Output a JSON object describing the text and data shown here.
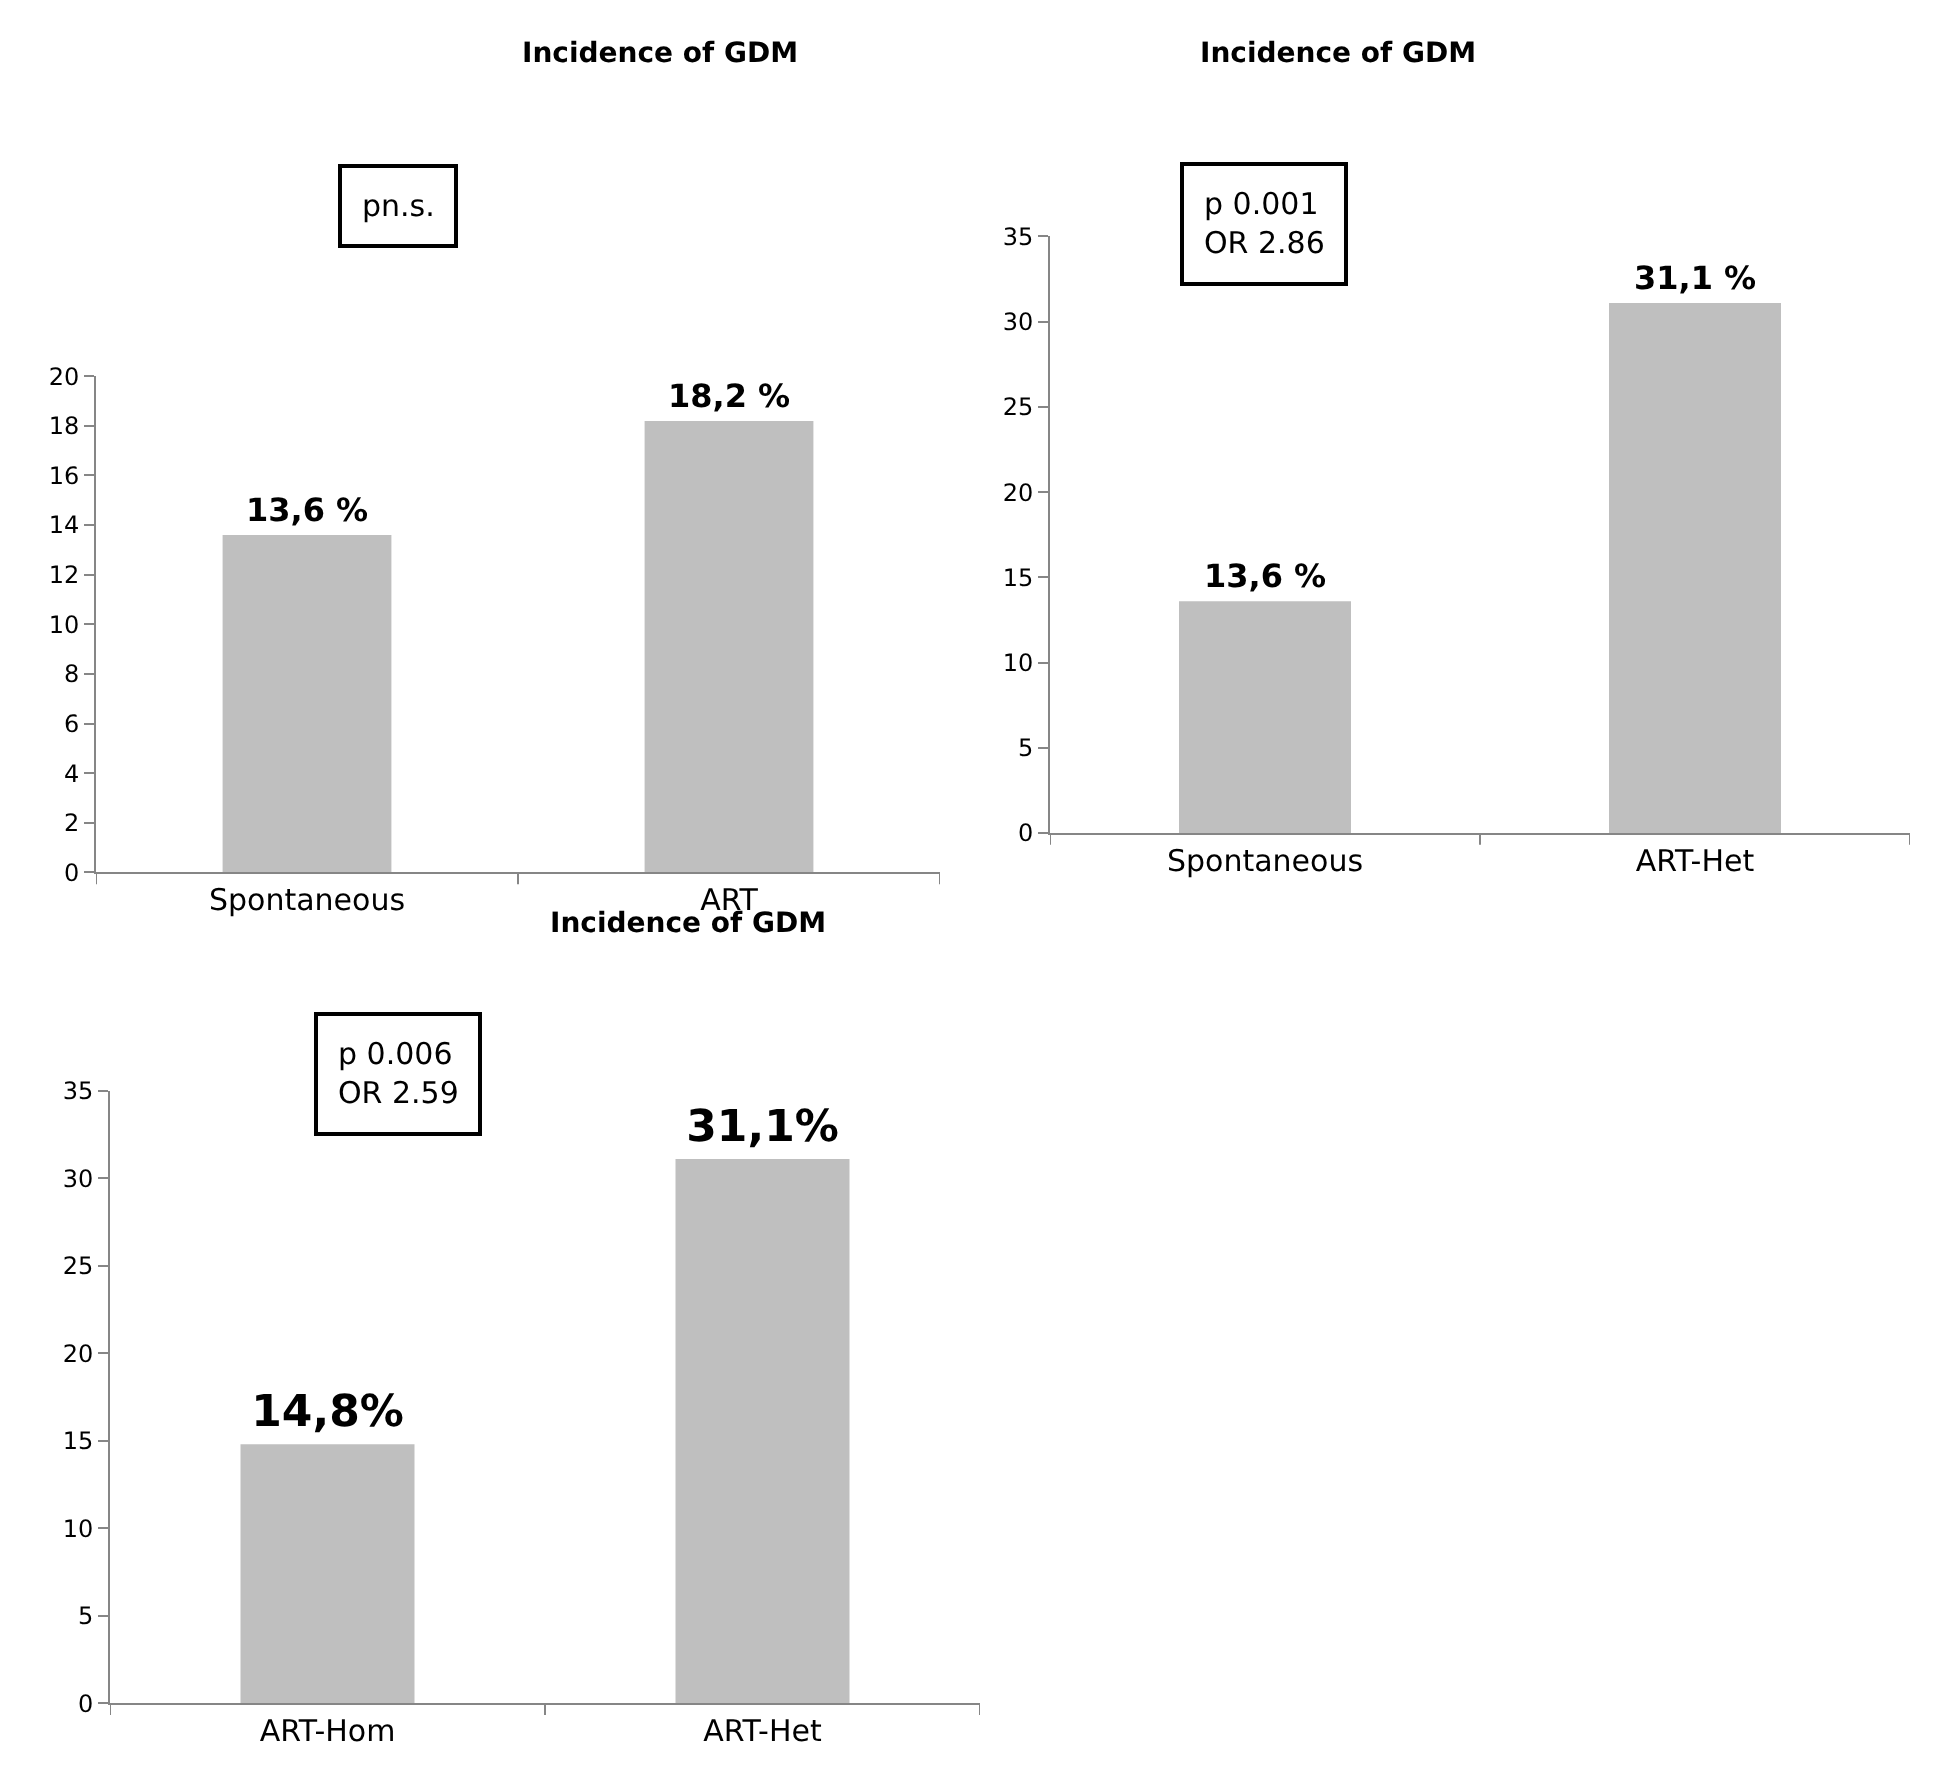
{
  "chart_data": [
    {
      "type": "bar",
      "title": "Incidence of GDM",
      "categories": [
        "Spontaneous",
        "ART"
      ],
      "values": [
        13.6,
        18.2
      ],
      "value_labels": [
        "13,6 %",
        "18,2 %"
      ],
      "color": "#bfbfbf",
      "ylim": [
        0,
        20
      ],
      "yticks": [
        0,
        2,
        4,
        6,
        8,
        10,
        12,
        14,
        16,
        18,
        20
      ],
      "annotations": [
        "pn.s."
      ]
    },
    {
      "type": "bar",
      "title": "Incidence of GDM",
      "categories": [
        "Spontaneous",
        "ART-Het"
      ],
      "values": [
        13.6,
        31.1
      ],
      "value_labels": [
        "13,6 %",
        "31,1 %"
      ],
      "color": "#bfbfbf",
      "ylim": [
        0,
        35
      ],
      "yticks": [
        0,
        5,
        10,
        15,
        20,
        25,
        30,
        35
      ],
      "annotations": [
        "p 0.001\nOR 2.86"
      ]
    },
    {
      "type": "bar",
      "title": "Incidence of GDM",
      "categories": [
        "ART-Hom",
        "ART-Het"
      ],
      "values": [
        14.8,
        31.1
      ],
      "value_labels": [
        "14,8%",
        "31,1%"
      ],
      "color": "#bfbfbf",
      "ylim": [
        0,
        35
      ],
      "yticks": [
        0,
        5,
        10,
        15,
        20,
        25,
        30,
        35
      ],
      "annotations": [
        "p 0.006\nOR 2.59"
      ]
    }
  ]
}
